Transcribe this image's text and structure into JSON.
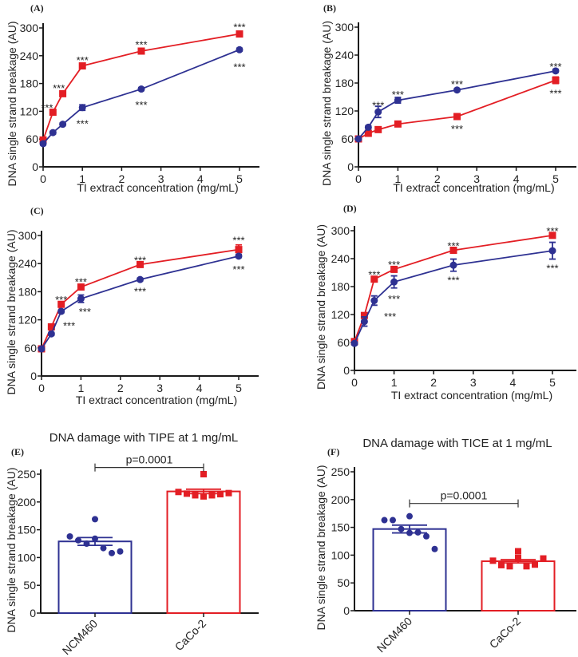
{
  "colors": {
    "blue": "#2e3192",
    "red": "#e31e24",
    "axis": "#1a1a1a"
  },
  "chart_data": [
    {
      "type": "line",
      "panel": "(A)",
      "xlabel": "TI extract concentration (mg/mL)",
      "ylabel": "DNA single strand breakage (AU)",
      "xlim": [
        0,
        5.5
      ],
      "ylim": [
        0,
        300
      ],
      "xticks": [
        0,
        1,
        2,
        3,
        4,
        5
      ],
      "yticks": [
        0,
        60,
        120,
        180,
        240,
        300
      ],
      "x": [
        0,
        0.25,
        0.5,
        1,
        2.5,
        5
      ],
      "series": [
        {
          "color": "red",
          "marker": "square",
          "values": [
            58,
            118,
            158,
            218,
            250,
            287
          ],
          "err": [
            3,
            4,
            4,
            5,
            4,
            4
          ]
        },
        {
          "color": "blue",
          "marker": "circle",
          "values": [
            50,
            74,
            92,
            128,
            168,
            253
          ],
          "err": [
            3,
            3,
            3,
            6,
            3,
            3
          ]
        }
      ],
      "annotations": [
        {
          "x": 0.1,
          "y": 130,
          "text": "***"
        },
        {
          "x": 0.4,
          "y": 172,
          "text": "***"
        },
        {
          "x": 1,
          "y": 233,
          "text": "***"
        },
        {
          "x": 2.5,
          "y": 266,
          "text": "***"
        },
        {
          "x": 5,
          "y": 304,
          "text": "***"
        },
        {
          "x": 1,
          "y": 96,
          "text": "***"
        },
        {
          "x": 2.5,
          "y": 136,
          "text": "***"
        },
        {
          "x": 5,
          "y": 218,
          "text": "***"
        }
      ]
    },
    {
      "type": "line",
      "panel": "(B)",
      "xlabel": "TI extract concentration (mg/mL)",
      "ylabel": "DNA single strand breakage (AU)",
      "xlim": [
        0,
        5.5
      ],
      "ylim": [
        0,
        300
      ],
      "xticks": [
        0,
        1,
        2,
        3,
        4,
        5
      ],
      "yticks": [
        0,
        60,
        120,
        180,
        240,
        300
      ],
      "x": [
        0,
        0.25,
        0.5,
        1,
        2.5,
        5
      ],
      "series": [
        {
          "color": "red",
          "marker": "square",
          "values": [
            60,
            72,
            80,
            92,
            108,
            186
          ],
          "err": [
            3,
            3,
            3,
            3,
            6,
            7
          ]
        },
        {
          "color": "blue",
          "marker": "circle",
          "values": [
            60,
            85,
            118,
            143,
            165,
            206
          ],
          "err": [
            3,
            3,
            12,
            6,
            3,
            3
          ]
        }
      ],
      "annotations": [
        {
          "x": 0.5,
          "y": 135,
          "text": "***"
        },
        {
          "x": 1,
          "y": 158,
          "text": "***"
        },
        {
          "x": 2.5,
          "y": 180,
          "text": "***"
        },
        {
          "x": 5,
          "y": 218,
          "text": "***"
        },
        {
          "x": 2.5,
          "y": 84,
          "text": "***"
        },
        {
          "x": 5,
          "y": 160,
          "text": "***"
        }
      ]
    },
    {
      "type": "line",
      "panel": "(C)",
      "xlabel": "TI extract concentration (mg/mL)",
      "ylabel": "DNA single strand breakage (AU)",
      "xlim": [
        0,
        5.5
      ],
      "ylim": [
        0,
        300
      ],
      "xticks": [
        0,
        1,
        2,
        3,
        4,
        5
      ],
      "yticks": [
        0,
        60,
        120,
        180,
        240,
        300
      ],
      "x": [
        0,
        0.25,
        0.5,
        1,
        2.5,
        5
      ],
      "series": [
        {
          "color": "red",
          "marker": "square",
          "values": [
            58,
            105,
            153,
            190,
            238,
            270
          ],
          "err": [
            3,
            3,
            4,
            4,
            3,
            10
          ]
        },
        {
          "color": "blue",
          "marker": "circle",
          "values": [
            58,
            90,
            138,
            165,
            206,
            256
          ],
          "err": [
            3,
            3,
            3,
            8,
            3,
            3
          ]
        }
      ],
      "annotations": [
        {
          "x": 0.5,
          "y": 165,
          "text": "***"
        },
        {
          "x": 1,
          "y": 204,
          "text": "***"
        },
        {
          "x": 2.5,
          "y": 250,
          "text": "***"
        },
        {
          "x": 5,
          "y": 292,
          "text": "***"
        },
        {
          "x": 0.7,
          "y": 110,
          "text": "***"
        },
        {
          "x": 1.1,
          "y": 140,
          "text": "***"
        },
        {
          "x": 2.5,
          "y": 183,
          "text": "***"
        },
        {
          "x": 5,
          "y": 230,
          "text": "***"
        }
      ]
    },
    {
      "type": "line",
      "panel": "(D)",
      "xlabel": "TI extract concentration (mg/mL)",
      "ylabel": "DNA single strand breakage (AU)",
      "xlim": [
        0,
        5.5
      ],
      "ylim": [
        0,
        300
      ],
      "xticks": [
        0,
        1,
        2,
        3,
        4,
        5
      ],
      "yticks": [
        0,
        60,
        120,
        180,
        240,
        300
      ],
      "x": [
        0,
        0.25,
        0.5,
        1,
        2.5,
        5
      ],
      "series": [
        {
          "color": "red",
          "marker": "square",
          "values": [
            62,
            118,
            196,
            217,
            258,
            290
          ],
          "err": [
            3,
            4,
            4,
            4,
            3,
            3
          ]
        },
        {
          "color": "blue",
          "marker": "circle",
          "values": [
            58,
            105,
            150,
            190,
            226,
            257
          ],
          "err": [
            3,
            10,
            10,
            13,
            13,
            18
          ]
        }
      ],
      "annotations": [
        {
          "x": 0.5,
          "y": 208,
          "text": "***"
        },
        {
          "x": 1,
          "y": 230,
          "text": "***"
        },
        {
          "x": 2.5,
          "y": 270,
          "text": "***"
        },
        {
          "x": 5,
          "y": 302,
          "text": "***"
        },
        {
          "x": 0.9,
          "y": 118,
          "text": "***"
        },
        {
          "x": 1,
          "y": 156,
          "text": "***"
        },
        {
          "x": 2.5,
          "y": 196,
          "text": "***"
        },
        {
          "x": 5,
          "y": 222,
          "text": "***"
        }
      ]
    },
    {
      "type": "bar",
      "panel": "(E)",
      "title": "DNA damage with TIPE at 1 mg/mL",
      "ylabel": "DNA single strand breakage (AU)",
      "ylim": [
        0,
        250
      ],
      "yticks": [
        0,
        50,
        100,
        150,
        200,
        250
      ],
      "categories": [
        "NCM460",
        "CaCo-2"
      ],
      "values": [
        129,
        219
      ],
      "err": [
        7,
        4
      ],
      "bar_colors": [
        "blue",
        "red"
      ],
      "points": [
        [
          169,
          138,
          131,
          125,
          134,
          117,
          108,
          111
        ],
        [
          250,
          218,
          215,
          212,
          210,
          212,
          214,
          216
        ]
      ],
      "significance": {
        "text": "p=0.0001",
        "y": 262
      }
    },
    {
      "type": "bar",
      "panel": "(F)",
      "title": "DNA damage with TICE at 1 mg/mL",
      "ylabel": "DNA single strand breakage (AU)",
      "ylim": [
        0,
        250
      ],
      "yticks": [
        0,
        50,
        100,
        150,
        200,
        250
      ],
      "categories": [
        "NCM460",
        "CaCo-2"
      ],
      "values": [
        147,
        89
      ],
      "err": [
        7,
        3
      ],
      "bar_colors": [
        "blue",
        "red"
      ],
      "points": [
        [
          170,
          163,
          163,
          147,
          140,
          141,
          134,
          111
        ],
        [
          107,
          90,
          82,
          80,
          95,
          80,
          83,
          94
        ]
      ],
      "significance": {
        "text": "p=0.0001",
        "y": 193
      }
    }
  ]
}
